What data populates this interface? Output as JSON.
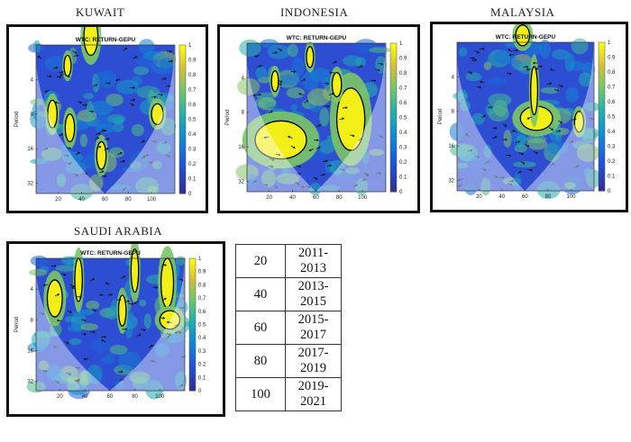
{
  "panels": [
    {
      "id": "kuwait",
      "country": "KUWAIT",
      "title": "WTC: RETURN-GEPU",
      "regions": [
        {
          "cx": 48,
          "cy": 0.75,
          "rx": 6,
          "ry": 0.55
        },
        {
          "cx": 30,
          "cy": 3.4,
          "rx": 4,
          "ry": 0.4
        },
        {
          "cx": 57,
          "cy": 4.2,
          "rx": 4,
          "ry": 0.4
        },
        {
          "cx": 15,
          "cy": 3.0,
          "rx": 4,
          "ry": 0.4
        },
        {
          "cx": 105,
          "cy": 3.0,
          "rx": 5,
          "ry": 0.3
        },
        {
          "cx": 28,
          "cy": 1.6,
          "rx": 3,
          "ry": 0.3
        }
      ]
    },
    {
      "id": "indonesia",
      "country": "INDONESIA",
      "title": "WTC: RETURN-GEPU",
      "regions": [
        {
          "cx": 30,
          "cy": 3.8,
          "rx": 22,
          "ry": 0.55
        },
        {
          "cx": 90,
          "cy": 3.2,
          "rx": 12,
          "ry": 0.9
        },
        {
          "cx": 78,
          "cy": 2.2,
          "rx": 4,
          "ry": 0.35
        },
        {
          "cx": 25,
          "cy": 2.1,
          "rx": 3,
          "ry": 0.3
        },
        {
          "cx": 55,
          "cy": 1.4,
          "rx": 3,
          "ry": 0.3
        }
      ]
    },
    {
      "id": "malaysia",
      "country": "MALAYSIA",
      "title": "WTC: RETURN-GEPU",
      "regions": [
        {
          "cx": 70,
          "cy": 3.2,
          "rx": 14,
          "ry": 0.35
        },
        {
          "cx": 68,
          "cy": 2.4,
          "rx": 3,
          "ry": 0.7
        },
        {
          "cx": 107,
          "cy": 3.3,
          "rx": 4,
          "ry": 0.3
        },
        {
          "cx": 58,
          "cy": 0.8,
          "rx": 6,
          "ry": 0.3
        }
      ]
    },
    {
      "id": "saudi",
      "country": "SAUDI ARABIA",
      "title": "WTC: RETURN-GEPU",
      "regions": [
        {
          "cx": 16,
          "cy": 2.3,
          "rx": 6,
          "ry": 0.6
        },
        {
          "cx": 35,
          "cy": 1.7,
          "rx": 3,
          "ry": 0.7
        },
        {
          "cx": 70,
          "cy": 2.7,
          "rx": 3,
          "ry": 0.5
        },
        {
          "cx": 80,
          "cy": 1.4,
          "rx": 3,
          "ry": 0.7
        },
        {
          "cx": 106,
          "cy": 1.8,
          "rx": 5,
          "ry": 0.8
        },
        {
          "cx": 108,
          "cy": 3.0,
          "rx": 8,
          "ry": 0.3
        }
      ]
    }
  ],
  "chart_data": {
    "type": "heatmap",
    "title": "WTC: RETURN-GEPU",
    "xlabel": "",
    "ylabel": "Period",
    "x_ticks": [
      20,
      40,
      60,
      80,
      100
    ],
    "y_ticks": [
      "4",
      "8",
      "16",
      "32"
    ],
    "xlim": [
      1,
      120
    ],
    "ylim_log2": [
      1,
      5.3
    ],
    "colorbar": {
      "ticks": [
        "0",
        "0.1",
        "0.2",
        "0.3",
        "0.4",
        "0.5",
        "0.6",
        "0.7",
        "0.8",
        "0.9",
        "1"
      ],
      "range": [
        0,
        1
      ]
    }
  },
  "legend_table": [
    {
      "key": "20",
      "period": "2011-2013"
    },
    {
      "key": "40",
      "period": "2013-2015"
    },
    {
      "key": "60",
      "period": "2015-2017"
    },
    {
      "key": "80",
      "period": "2017-2019"
    },
    {
      "key": "100",
      "period": "2019-2021"
    }
  ],
  "colors": {
    "low": "#3b1fb8",
    "high": "#f5f020",
    "frame": "#111111"
  }
}
